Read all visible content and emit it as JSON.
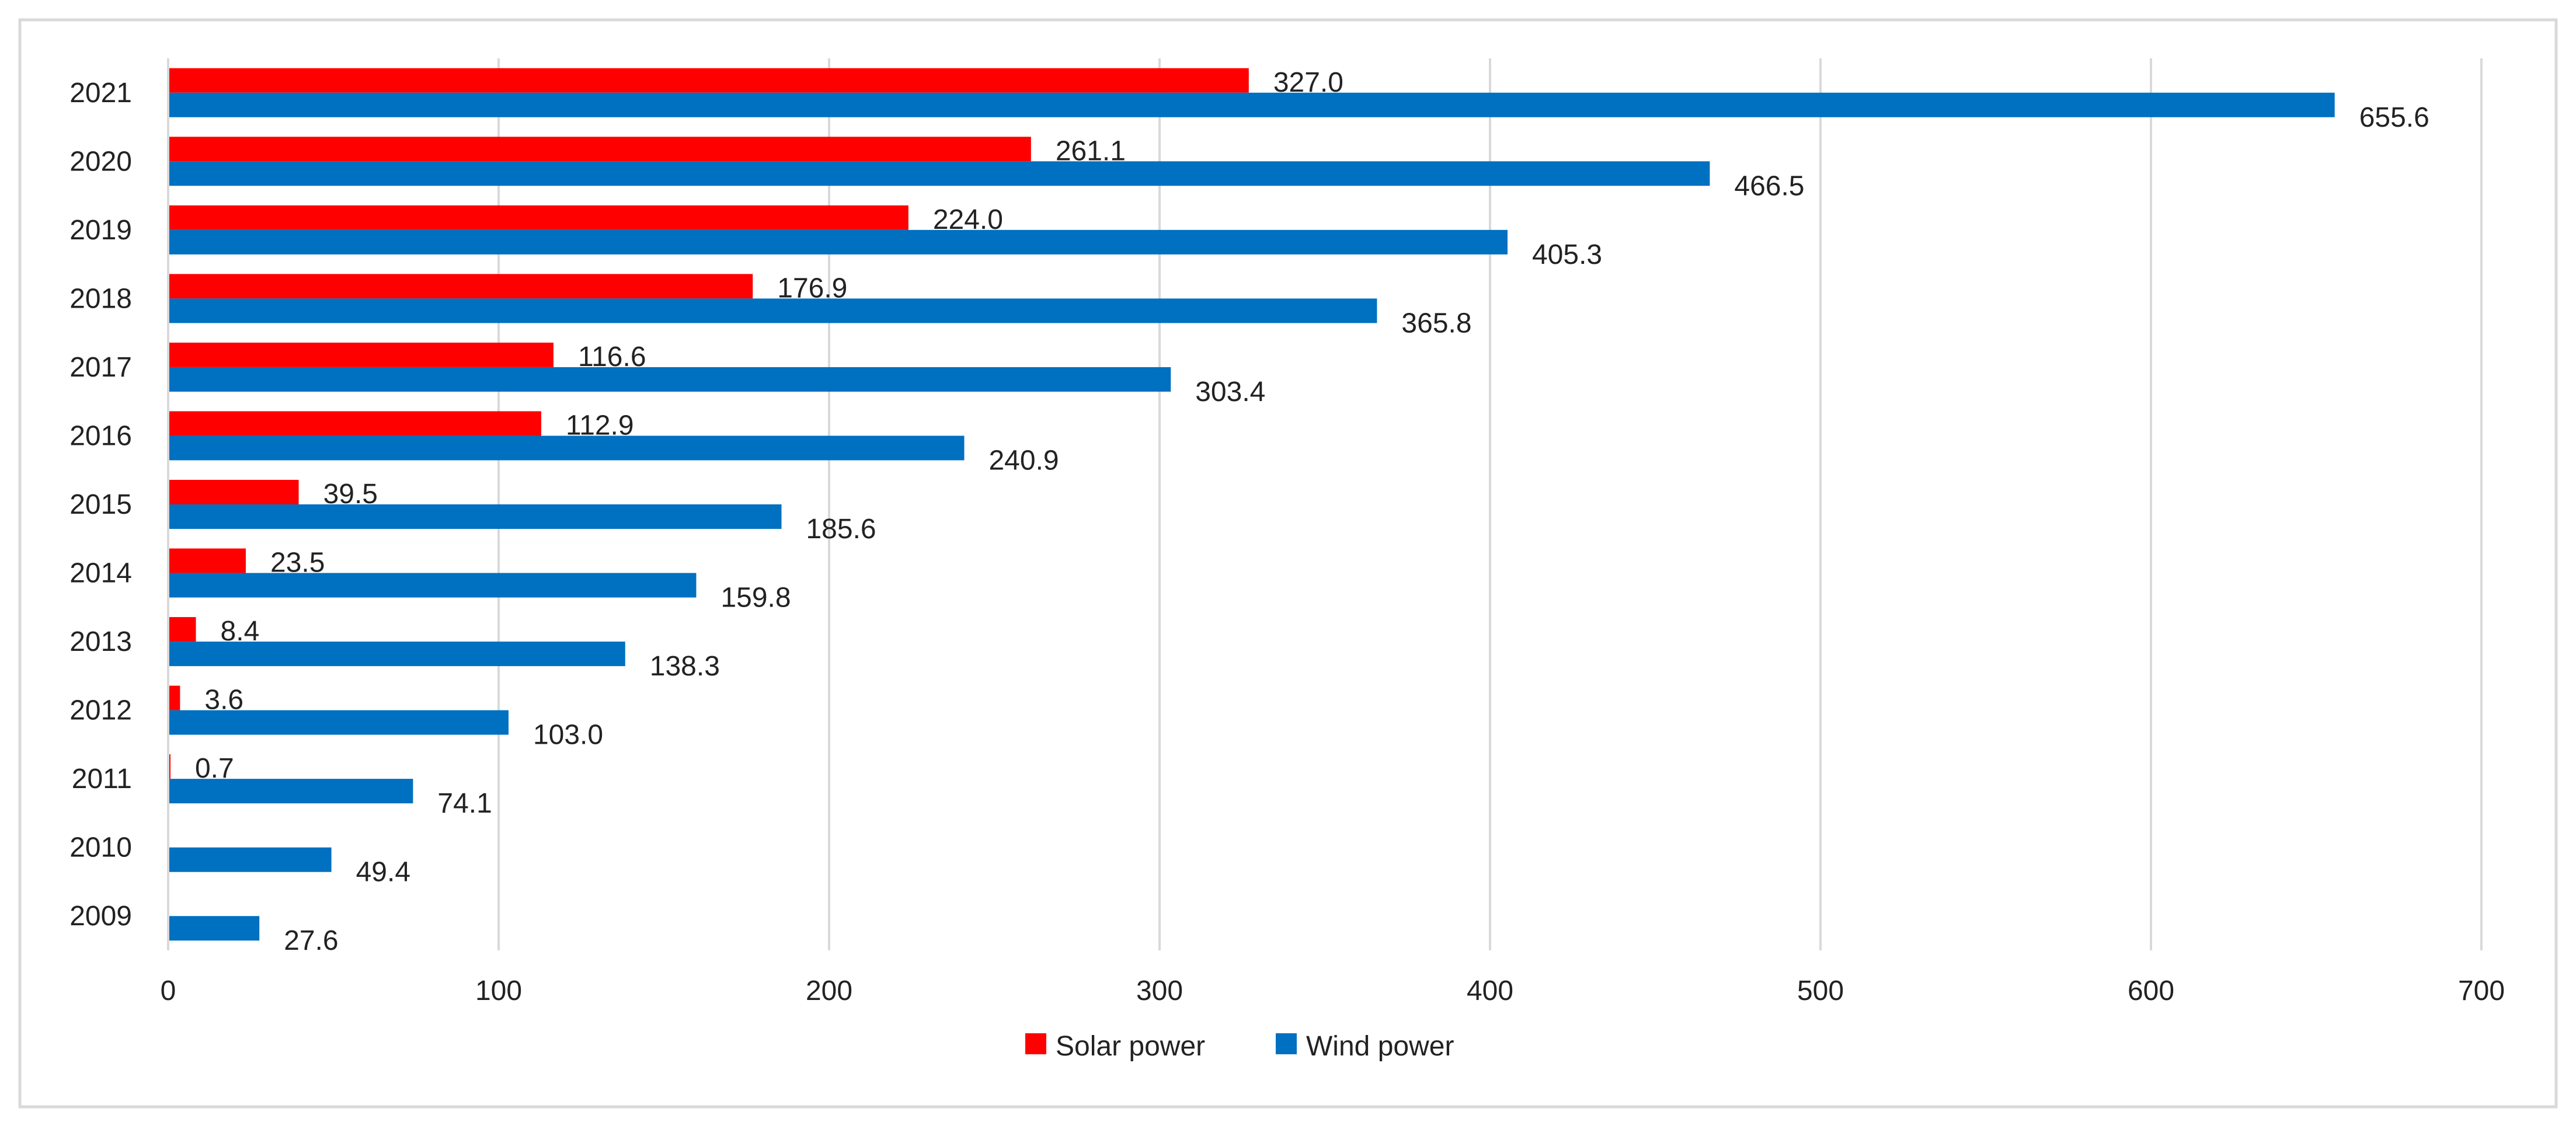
{
  "chart_data": {
    "type": "bar",
    "orientation": "horizontal",
    "categories": [
      "2009",
      "2010",
      "2011",
      "2012",
      "2013",
      "2014",
      "2015",
      "2016",
      "2017",
      "2018",
      "2019",
      "2020",
      "2021"
    ],
    "series": [
      {
        "name": "Solar power",
        "color": "#ff0000",
        "values": [
          null,
          null,
          0.7,
          3.6,
          8.4,
          23.5,
          39.5,
          112.9,
          116.6,
          176.9,
          224.0,
          261.1,
          327.0
        ],
        "labels": [
          null,
          null,
          "0.7",
          "3.6",
          "8.4",
          "23.5",
          "39.5",
          "112.9",
          "116.6",
          "176.9",
          "224.0",
          "261.1",
          "327.0"
        ]
      },
      {
        "name": "Wind power",
        "color": "#0070c0",
        "values": [
          27.6,
          49.4,
          74.1,
          103.0,
          138.3,
          159.8,
          185.6,
          240.9,
          303.4,
          365.8,
          405.3,
          466.5,
          655.6
        ],
        "labels": [
          "27.6",
          "49.4",
          "74.1",
          "103.0",
          "138.3",
          "159.8",
          "185.6",
          "240.9",
          "303.4",
          "365.8",
          "405.3",
          "466.5",
          "655.6"
        ]
      }
    ],
    "xlim": [
      0,
      700
    ],
    "xticks": [
      "0",
      "100",
      "200",
      "300",
      "400",
      "500",
      "600",
      "700"
    ],
    "title": "",
    "xlabel": "",
    "ylabel": "",
    "grid": "vertical",
    "legend_position": "bottom"
  }
}
